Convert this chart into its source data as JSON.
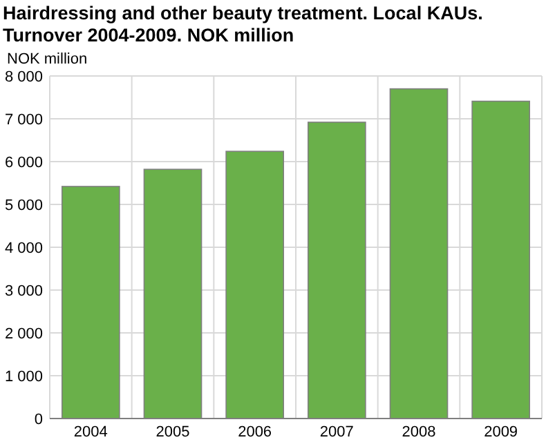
{
  "chart_data": {
    "type": "bar",
    "title": "Hairdressing and other beauty treatment. Local KAUs. Turnover 2004-2009. NOK million",
    "ylabel": "NOK million",
    "categories": [
      "2004",
      "2005",
      "2006",
      "2007",
      "2008",
      "2009"
    ],
    "values": [
      5420,
      5820,
      6240,
      6920,
      7700,
      7410
    ],
    "color": "#6ab04a",
    "ylim": [
      0,
      8000
    ],
    "yticks": [
      {
        "value": 0,
        "label": "0"
      },
      {
        "value": 1000,
        "label": "1 000"
      },
      {
        "value": 2000,
        "label": "2 000"
      },
      {
        "value": 3000,
        "label": "3 000"
      },
      {
        "value": 4000,
        "label": "4 000"
      },
      {
        "value": 5000,
        "label": "5 000"
      },
      {
        "value": 6000,
        "label": "6 000"
      },
      {
        "value": 7000,
        "label": "7 000"
      },
      {
        "value": 8000,
        "label": "8 000"
      }
    ],
    "grid": true
  }
}
